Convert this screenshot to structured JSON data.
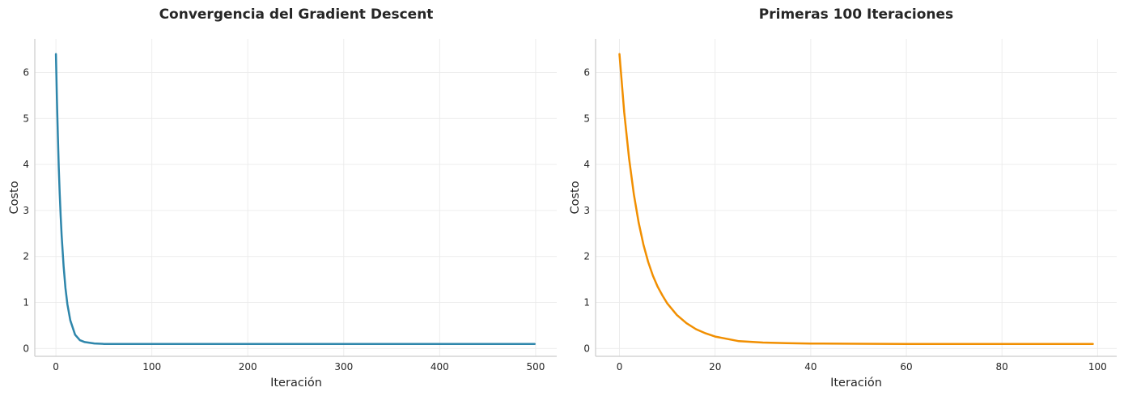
{
  "figure": {
    "background": "#ffffff"
  },
  "chart_data": [
    {
      "type": "line",
      "title": "Convergencia del Gradient Descent",
      "xlabel": "Iteración",
      "ylabel": "Costo",
      "xlim": [
        -22,
        522
      ],
      "ylim": [
        -0.17,
        6.73
      ],
      "xticks": [
        0,
        100,
        200,
        300,
        400,
        500
      ],
      "yticks": [
        0,
        1,
        2,
        3,
        4,
        5,
        6
      ],
      "grid": true,
      "legend": "none",
      "series": [
        {
          "color": "#2e86ab",
          "x": [
            0,
            1,
            2,
            3,
            4,
            5,
            6,
            8,
            10,
            12,
            15,
            20,
            25,
            30,
            40,
            50,
            100,
            200,
            300,
            400,
            499
          ],
          "y": [
            6.4,
            5.44,
            4.63,
            3.94,
            3.36,
            2.87,
            2.45,
            1.79,
            1.31,
            0.96,
            0.61,
            0.3,
            0.18,
            0.14,
            0.11,
            0.1,
            0.1,
            0.1,
            0.1,
            0.1,
            0.1
          ]
        }
      ]
    },
    {
      "type": "line",
      "title": "Primeras 100 Iteraciones",
      "xlabel": "Iteración",
      "ylabel": "Costo",
      "xlim": [
        -5,
        104
      ],
      "ylim": [
        -0.17,
        6.73
      ],
      "xticks": [
        0,
        20,
        40,
        60,
        80,
        100
      ],
      "yticks": [
        0,
        1,
        2,
        3,
        4,
        5,
        6
      ],
      "grid": true,
      "legend": "none",
      "series": [
        {
          "color": "#f18f01",
          "x": [
            0,
            1,
            2,
            3,
            4,
            5,
            6,
            7,
            8,
            9,
            10,
            12,
            14,
            16,
            18,
            20,
            25,
            30,
            35,
            40,
            50,
            60,
            70,
            80,
            90,
            99
          ],
          "y": [
            6.4,
            5.13,
            4.13,
            3.35,
            2.74,
            2.26,
            1.88,
            1.58,
            1.34,
            1.15,
            0.98,
            0.73,
            0.55,
            0.42,
            0.33,
            0.26,
            0.16,
            0.13,
            0.115,
            0.108,
            0.102,
            0.1,
            0.1,
            0.1,
            0.1,
            0.1
          ]
        }
      ]
    }
  ]
}
